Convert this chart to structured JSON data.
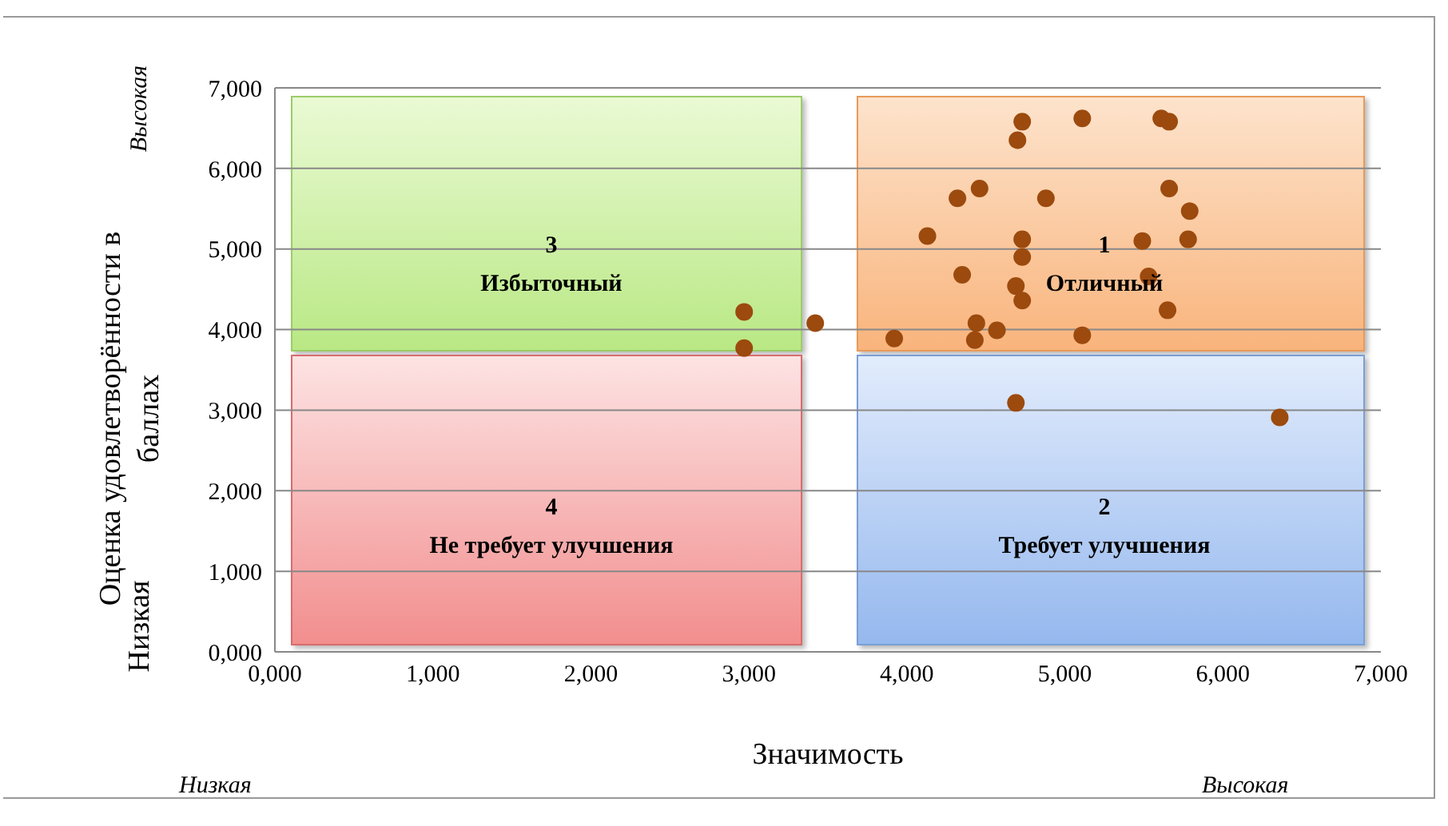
{
  "chart_data": {
    "type": "scatter",
    "xlabel": "Значимость",
    "ylabel": "Оценка удовлетворённости в баллах",
    "x": [
      2.97,
      2.97,
      3.42,
      3.92,
      4.13,
      4.35,
      4.32,
      4.46,
      4.44,
      4.43,
      4.57,
      4.7,
      4.73,
      4.88,
      4.73,
      4.73,
      4.69,
      4.73,
      5.11,
      5.11,
      5.61,
      5.66,
      5.66,
      5.79,
      5.49,
      5.78,
      5.53,
      5.65,
      4.69,
      6.36
    ],
    "values": [
      4.22,
      3.77,
      4.08,
      3.89,
      5.16,
      4.68,
      5.63,
      5.75,
      4.08,
      3.87,
      3.99,
      6.35,
      6.58,
      5.63,
      5.12,
      4.9,
      4.54,
      4.36,
      3.93,
      6.62,
      6.62,
      6.58,
      5.75,
      5.47,
      5.1,
      5.12,
      4.66,
      4.24,
      3.09,
      2.91
    ],
    "color": "#9c4a0e",
    "marker": "circle",
    "xlim": [
      0,
      7
    ],
    "ylim": [
      0,
      7
    ],
    "xticks": [
      {
        "value": 0,
        "label": "0,000"
      },
      {
        "value": 1,
        "label": "1,000"
      },
      {
        "value": 2,
        "label": "2,000"
      },
      {
        "value": 3,
        "label": "3,000"
      },
      {
        "value": 4,
        "label": "4,000"
      },
      {
        "value": 5,
        "label": "5,000"
      },
      {
        "value": 6,
        "label": "6,000"
      },
      {
        "value": 7,
        "label": "7,000"
      }
    ],
    "yticks": [
      {
        "value": 0,
        "label": "0,000"
      },
      {
        "value": 1,
        "label": "1,000"
      },
      {
        "value": 2,
        "label": "2,000"
      },
      {
        "value": 3,
        "label": "3,000"
      },
      {
        "value": 4,
        "label": "4,000"
      },
      {
        "value": 5,
        "label": "5,000"
      },
      {
        "value": 6,
        "label": "6,000"
      },
      {
        "value": 7,
        "label": "7,000"
      }
    ],
    "grid": "y",
    "annotations": [
      "Высокая",
      "Низкая",
      "Низкая",
      "Высокая",
      "3\nИзбыточный",
      "1\nОтличный",
      "4\nНе требует улучшения",
      "2\nТребует улучшения"
    ]
  }
}
